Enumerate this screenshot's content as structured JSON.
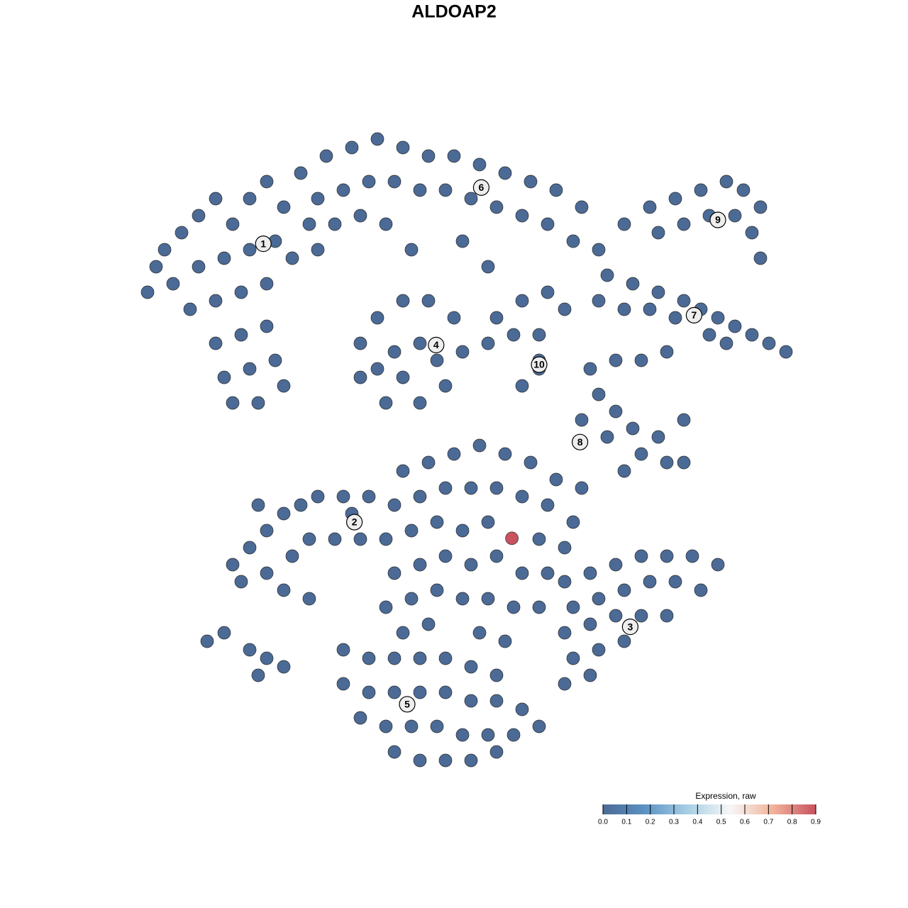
{
  "chart_data": {
    "type": "scatter",
    "title": "ALDOAP2",
    "xlim": [
      -42,
      42
    ],
    "ylim": [
      -42,
      42
    ],
    "x": [
      -34,
      -32,
      -30,
      -28,
      -26,
      -24,
      -22,
      -20,
      -33,
      -30,
      -27,
      -24,
      -21,
      -31,
      -28,
      -25,
      -22,
      -28,
      -25,
      -22,
      -27,
      -24,
      -21,
      -26,
      -23,
      -20,
      -36,
      -35,
      -18,
      -15,
      -12,
      -9,
      -6,
      -3,
      0,
      3,
      6,
      9,
      12,
      15,
      -16,
      -13,
      -10,
      -7,
      -4,
      -1,
      2,
      5,
      8,
      11,
      14,
      17,
      -17,
      -14,
      -11,
      -8,
      -5,
      1,
      4,
      -19,
      -16,
      -11,
      -9,
      -6,
      -3,
      0,
      1,
      -1,
      -4,
      -8,
      -11,
      -7,
      -4,
      -6,
      -2,
      -9,
      5,
      8,
      11,
      13,
      4,
      7,
      10,
      10,
      8,
      10,
      20,
      23,
      26,
      29,
      32,
      34,
      36,
      35,
      33,
      30,
      27,
      24,
      36,
      18,
      21,
      24,
      27,
      29,
      31,
      33,
      35,
      37,
      39,
      32,
      30,
      26,
      23,
      20,
      17,
      16,
      19,
      22,
      25,
      17,
      19,
      21,
      18,
      22,
      25,
      27,
      24,
      27,
      20,
      15,
      -26,
      -24,
      -22,
      -20,
      -18,
      -16,
      -13,
      -10,
      -25,
      -22,
      -19,
      -17,
      -14,
      -11,
      -20,
      -17,
      -12,
      -23,
      -6,
      -3,
      0,
      3,
      6,
      9,
      12,
      15,
      -7,
      -4,
      -1,
      2,
      5,
      8,
      11,
      14,
      -8,
      -5,
      -2,
      1,
      4,
      10,
      13,
      -7,
      -4,
      -1,
      2,
      5,
      8,
      11,
      -8,
      -5,
      -2,
      1,
      4,
      7,
      10,
      -6,
      -3,
      3,
      6,
      13,
      16,
      19,
      22,
      25,
      28,
      31,
      14,
      17,
      20,
      23,
      26,
      29,
      13,
      16,
      19,
      22,
      25,
      14,
      17,
      20,
      13,
      16,
      -13,
      -10,
      -7,
      -4,
      -1,
      2,
      5,
      -13,
      -10,
      -7,
      -4,
      -1,
      2,
      5,
      8,
      10,
      -11,
      -8,
      -5,
      -2,
      1,
      4,
      7,
      -7,
      -4,
      -1,
      2,
      5,
      -29,
      -27,
      -24,
      -22,
      -20,
      -23,
      6.8
    ],
    "y": [
      24,
      26,
      28,
      30,
      27,
      30,
      32,
      29,
      20,
      22,
      23,
      24,
      25,
      17,
      18,
      19,
      20,
      13,
      14,
      15,
      9,
      10,
      11,
      6,
      6,
      8,
      19,
      22,
      33,
      35,
      36,
      37,
      36,
      35,
      35,
      34,
      33,
      32,
      31,
      29,
      30,
      31,
      32,
      32,
      31,
      31,
      30,
      29,
      28,
      27,
      25,
      24,
      27,
      27,
      28,
      27,
      24,
      25,
      22,
      23,
      24,
      13,
      16,
      18,
      18,
      16,
      12,
      8,
      6,
      6,
      9,
      12,
      13,
      9,
      11,
      10,
      16,
      18,
      19,
      17,
      13,
      14,
      14,
      10,
      8,
      11,
      27,
      29,
      30,
      31,
      32,
      31,
      29,
      26,
      28,
      28,
      27,
      26,
      23,
      21,
      20,
      19,
      18,
      17,
      16,
      15,
      14,
      13,
      12,
      13,
      14,
      16,
      17,
      17,
      18,
      10,
      11,
      11,
      12,
      7,
      5,
      3,
      2,
      0,
      -1,
      -1,
      2,
      4,
      -2,
      4,
      -13,
      -11,
      -9,
      -7,
      -6,
      -5,
      -5,
      -5,
      -15,
      -14,
      -12,
      -10,
      -10,
      -10,
      -16,
      -17,
      -7,
      -6,
      -2,
      -1,
      0,
      1,
      0,
      -1,
      -3,
      -4,
      -6,
      -5,
      -4,
      -4,
      -4,
      -5,
      -6,
      -8,
      -10,
      -9,
      -8,
      -9,
      -8,
      -10,
      -11,
      -14,
      -13,
      -12,
      -13,
      -12,
      -14,
      -14,
      -18,
      -17,
      -16,
      -17,
      -17,
      -18,
      -18,
      -21,
      -20,
      -21,
      -22,
      -15,
      -14,
      -13,
      -12,
      -12,
      -12,
      -13,
      -18,
      -17,
      -16,
      -15,
      -15,
      -16,
      -21,
      -20,
      -19,
      -19,
      -19,
      -24,
      -23,
      -22,
      -27,
      -26,
      -23,
      -24,
      -24,
      -24,
      -24,
      -25,
      -26,
      -27,
      -28,
      -28,
      -28,
      -28,
      -29,
      -29,
      -30,
      -32,
      -31,
      -32,
      -32,
      -32,
      -33,
      -33,
      -33,
      -35,
      -36,
      -36,
      -36,
      -35,
      -22,
      -21,
      -23,
      -24,
      -25,
      -26,
      -9.9
    ],
    "values": [
      0,
      0,
      0,
      0,
      0,
      0,
      0,
      0,
      0,
      0,
      0,
      0,
      0,
      0,
      0,
      0,
      0,
      0,
      0,
      0,
      0,
      0,
      0,
      0,
      0,
      0,
      0,
      0,
      0,
      0,
      0,
      0,
      0,
      0,
      0,
      0,
      0,
      0,
      0,
      0,
      0,
      0,
      0,
      0,
      0,
      0,
      0,
      0,
      0,
      0,
      0,
      0,
      0,
      0,
      0,
      0,
      0,
      0,
      0,
      0,
      0,
      0,
      0,
      0,
      0,
      0,
      0,
      0,
      0,
      0,
      0,
      0,
      0,
      0,
      0,
      0,
      0,
      0,
      0,
      0,
      0,
      0,
      0,
      0,
      0,
      0,
      0,
      0,
      0,
      0,
      0,
      0,
      0,
      0,
      0,
      0,
      0,
      0,
      0,
      0,
      0,
      0,
      0,
      0,
      0,
      0,
      0,
      0,
      0,
      0,
      0,
      0,
      0,
      0,
      0,
      0,
      0,
      0,
      0,
      0,
      0,
      0,
      0,
      0,
      0,
      0,
      0,
      0,
      0,
      0,
      0,
      0,
      0,
      0,
      0,
      0,
      0,
      0,
      0,
      0,
      0,
      0,
      0,
      0,
      0,
      0,
      0,
      0,
      0,
      0,
      0,
      0,
      0,
      0,
      0,
      0,
      0,
      0,
      0,
      0,
      0,
      0,
      0,
      0,
      0,
      0,
      0,
      0,
      0,
      0,
      0,
      0,
      0,
      0,
      0,
      0,
      0,
      0,
      0,
      0,
      0,
      0,
      0,
      0,
      0,
      0,
      0,
      0,
      0,
      0,
      0,
      0,
      0,
      0,
      0,
      0,
      0,
      0,
      0,
      0,
      0,
      0,
      0,
      0,
      0,
      0,
      0,
      0,
      0,
      0,
      0,
      0,
      0,
      0,
      0,
      0,
      0,
      0,
      0,
      0,
      0,
      0,
      0,
      0,
      0,
      0,
      0,
      0,
      0,
      0,
      0,
      0,
      0,
      0,
      0,
      0,
      0,
      0,
      0,
      0,
      0,
      0,
      0,
      0,
      0,
      0,
      0.9
    ],
    "clusters": [
      {
        "label": "1",
        "x": -22.4,
        "y": 24.7
      },
      {
        "label": "2",
        "x": -11.7,
        "y": -8
      },
      {
        "label": "3",
        "x": 20.7,
        "y": -20.3
      },
      {
        "label": "4",
        "x": -2.1,
        "y": 12.8
      },
      {
        "label": "5",
        "x": -5.5,
        "y": -29.4
      },
      {
        "label": "6",
        "x": 3.2,
        "y": 31.3
      },
      {
        "label": "7",
        "x": 28.2,
        "y": 16.3
      },
      {
        "label": "8",
        "x": 14.8,
        "y": 1.4
      },
      {
        "label": "9",
        "x": 31,
        "y": 27.5
      },
      {
        "label": "10",
        "x": 10,
        "y": 10.5
      }
    ],
    "colorbar_title": "Expression, raw",
    "clim": [
      0,
      0.9
    ],
    "colorscale": [
      "#4b6a96",
      "#5b93c4",
      "#a9cfe5",
      "#f7f7f7",
      "#f2b29a",
      "#c8525f"
    ],
    "cticks": [
      {
        "value": 0,
        "label": "0.0"
      },
      0.1,
      0.2,
      0.3,
      0.4,
      0.5,
      0.6,
      0.7,
      0.8,
      0.9
    ]
  }
}
